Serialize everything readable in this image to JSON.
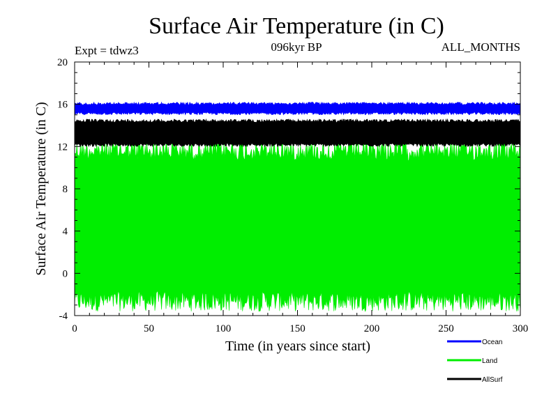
{
  "header": {
    "experiment": "Expt = tdwz3",
    "period": "096kyr BP",
    "months": "ALL_MONTHS"
  },
  "chart_data": {
    "type": "line",
    "title": "Surface Air Temperature (in C)",
    "xlabel": "Time (in years since start)",
    "ylabel": "Surface Air Temperature (in C)",
    "xlim": [
      0,
      300
    ],
    "ylim": [
      -4,
      20
    ],
    "x_ticks": [
      0,
      50,
      100,
      150,
      200,
      250,
      300
    ],
    "y_ticks": [
      -4,
      0,
      4,
      8,
      12,
      16,
      20
    ],
    "grid": false,
    "legend_position": "bottom-right",
    "series": [
      {
        "name": "Ocean",
        "color": "#0000ff",
        "band_min": 15.0,
        "band_max": 16.2,
        "mean": 15.6
      },
      {
        "name": "Land",
        "color": "#00ee00",
        "band_min": -3.6,
        "band_max": 12.6,
        "mean": 5.0
      },
      {
        "name": "AllSurf",
        "color": "#000000",
        "band_min": 12.0,
        "band_max": 14.6,
        "mean": 13.3
      }
    ]
  }
}
